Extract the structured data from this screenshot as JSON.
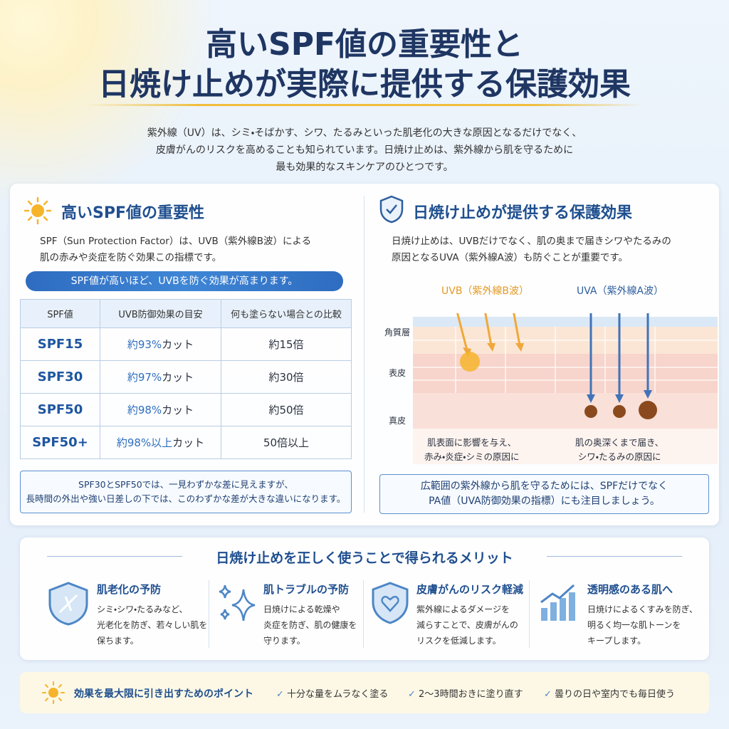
{
  "header": {
    "title_lines": [
      "高いSPF値の重要性と",
      "日焼け止めが実際に提供する保護効果"
    ],
    "intro_lines": [
      "紫外線（UV）は、シミ・そばかす、シワ、たるみといった肌老化の大きな原因となるだけでなく、",
      "皮膚がんのリスクを高めることも知られています。日焼け止めは、紫外線から肌を守るために",
      "最も効果的なスキンケアのひとつです。"
    ]
  },
  "left_panel": {
    "title": "高いSPF値の重要性",
    "text_lines": [
      "SPF（Sun Protection Factor）は、UVB（紫外線B波）による",
      "肌の赤みや炎症を防ぐ効果この指標です。"
    ],
    "banner": "SPF値が高いほど、UVBを防ぐ効果が高まります。",
    "table": {
      "headers": [
        "SPF値",
        "UVB防御効果の目安",
        "何も塗らない場合との比較"
      ],
      "rows": [
        [
          "SPF15",
          [
            "約93%",
            "カット"
          ],
          "約15倍"
        ],
        [
          "SPF30",
          [
            "約97%",
            "カット"
          ],
          "約30倍"
        ],
        [
          "SPF50",
          [
            "約98%",
            "カット"
          ],
          "約50倍"
        ],
        [
          "SPF50+",
          [
            "約98%以上",
            "カット"
          ],
          "50倍以上"
        ]
      ]
    },
    "note_lines": [
      "SPF30とSPF50では、一見わずかな差に見えますが、",
      "長時間の外出や強い日差しの下では、このわずかな差が大きな違いになります。"
    ]
  },
  "right_panel": {
    "title": "日焼け止めが提供する保護効果",
    "text_lines": [
      "日焼け止めは、UVBだけでなく、肌の奥まで届きシワやたるみの",
      "原因となるUVA（紫外線A波）も防ぐことが重要です。"
    ],
    "uvb_label": "UVB（紫外線B波）",
    "uva_label": "UVA（紫外線A波）",
    "layers": [
      "角質層",
      "表皮",
      "真皮"
    ],
    "uvb_caption_lines": [
      "肌表面に影響を与え、",
      "赤み・炎症・シミの原因に"
    ],
    "uva_caption_lines": [
      "肌の奥深くまで届き、",
      "シワ・たるみの原因に"
    ],
    "note_lines": [
      "広範囲の紫外線から肌を守るためには、SPFだけでなく",
      "PA値（UVA防御効果の指標）にも注目しましょう。"
    ]
  },
  "benefits": {
    "title": "日焼け止めを正しく使うことで得られるメリット",
    "items": [
      {
        "title": "肌老化の予防",
        "lines": [
          "シミ・シワ・たるみなど、",
          "光老化を防ぎ、若々しい肌を",
          "保ちます。"
        ]
      },
      {
        "title": "肌トラブルの予防",
        "lines": [
          "日焼けによる乾燥や",
          "炎症を防ぎ、肌の健康を",
          "守ります。"
        ]
      },
      {
        "title": "皮膚がんのリスク軽減",
        "lines": [
          "紫外線によるダメージを",
          "減らすことで、皮膚がんの",
          "リスクを低減します。"
        ]
      },
      {
        "title": "透明感のある肌へ",
        "lines": [
          "日焼けによるくすみを防ぎ、",
          "明るく均一な肌トーンを",
          "キープします。"
        ]
      }
    ]
  },
  "tips": {
    "title": "効果を最大限に引き出すためのポイント",
    "items": [
      "十分な量をムラなく塗る",
      "2〜3時間おきに塗り直す",
      "曇りの日や室内でも毎日使う"
    ]
  }
}
